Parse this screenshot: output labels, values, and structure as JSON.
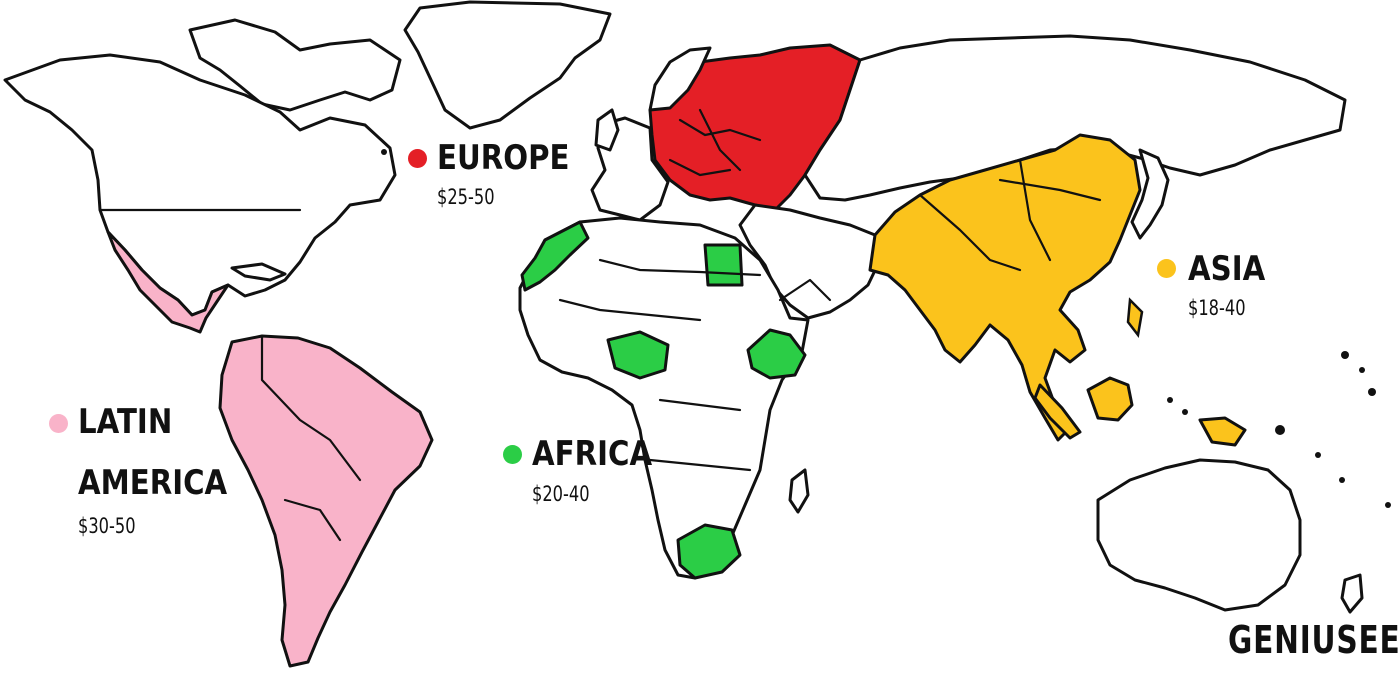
{
  "regions": {
    "europe": {
      "name": "EUROPE",
      "price": "$25-50",
      "color": "#e41f26"
    },
    "asia": {
      "name": "ASIA",
      "price": "$18-40",
      "color": "#fbc31c"
    },
    "africa": {
      "name": "AFRICA",
      "price": "$20-40",
      "color": "#2bcd46"
    },
    "latin_america": {
      "name_line1": "LATIN",
      "name_line2": "AMERICA",
      "price": "$30-50",
      "color": "#f9b3c9"
    }
  },
  "brand": {
    "logo_text": "GENIUSEE"
  }
}
